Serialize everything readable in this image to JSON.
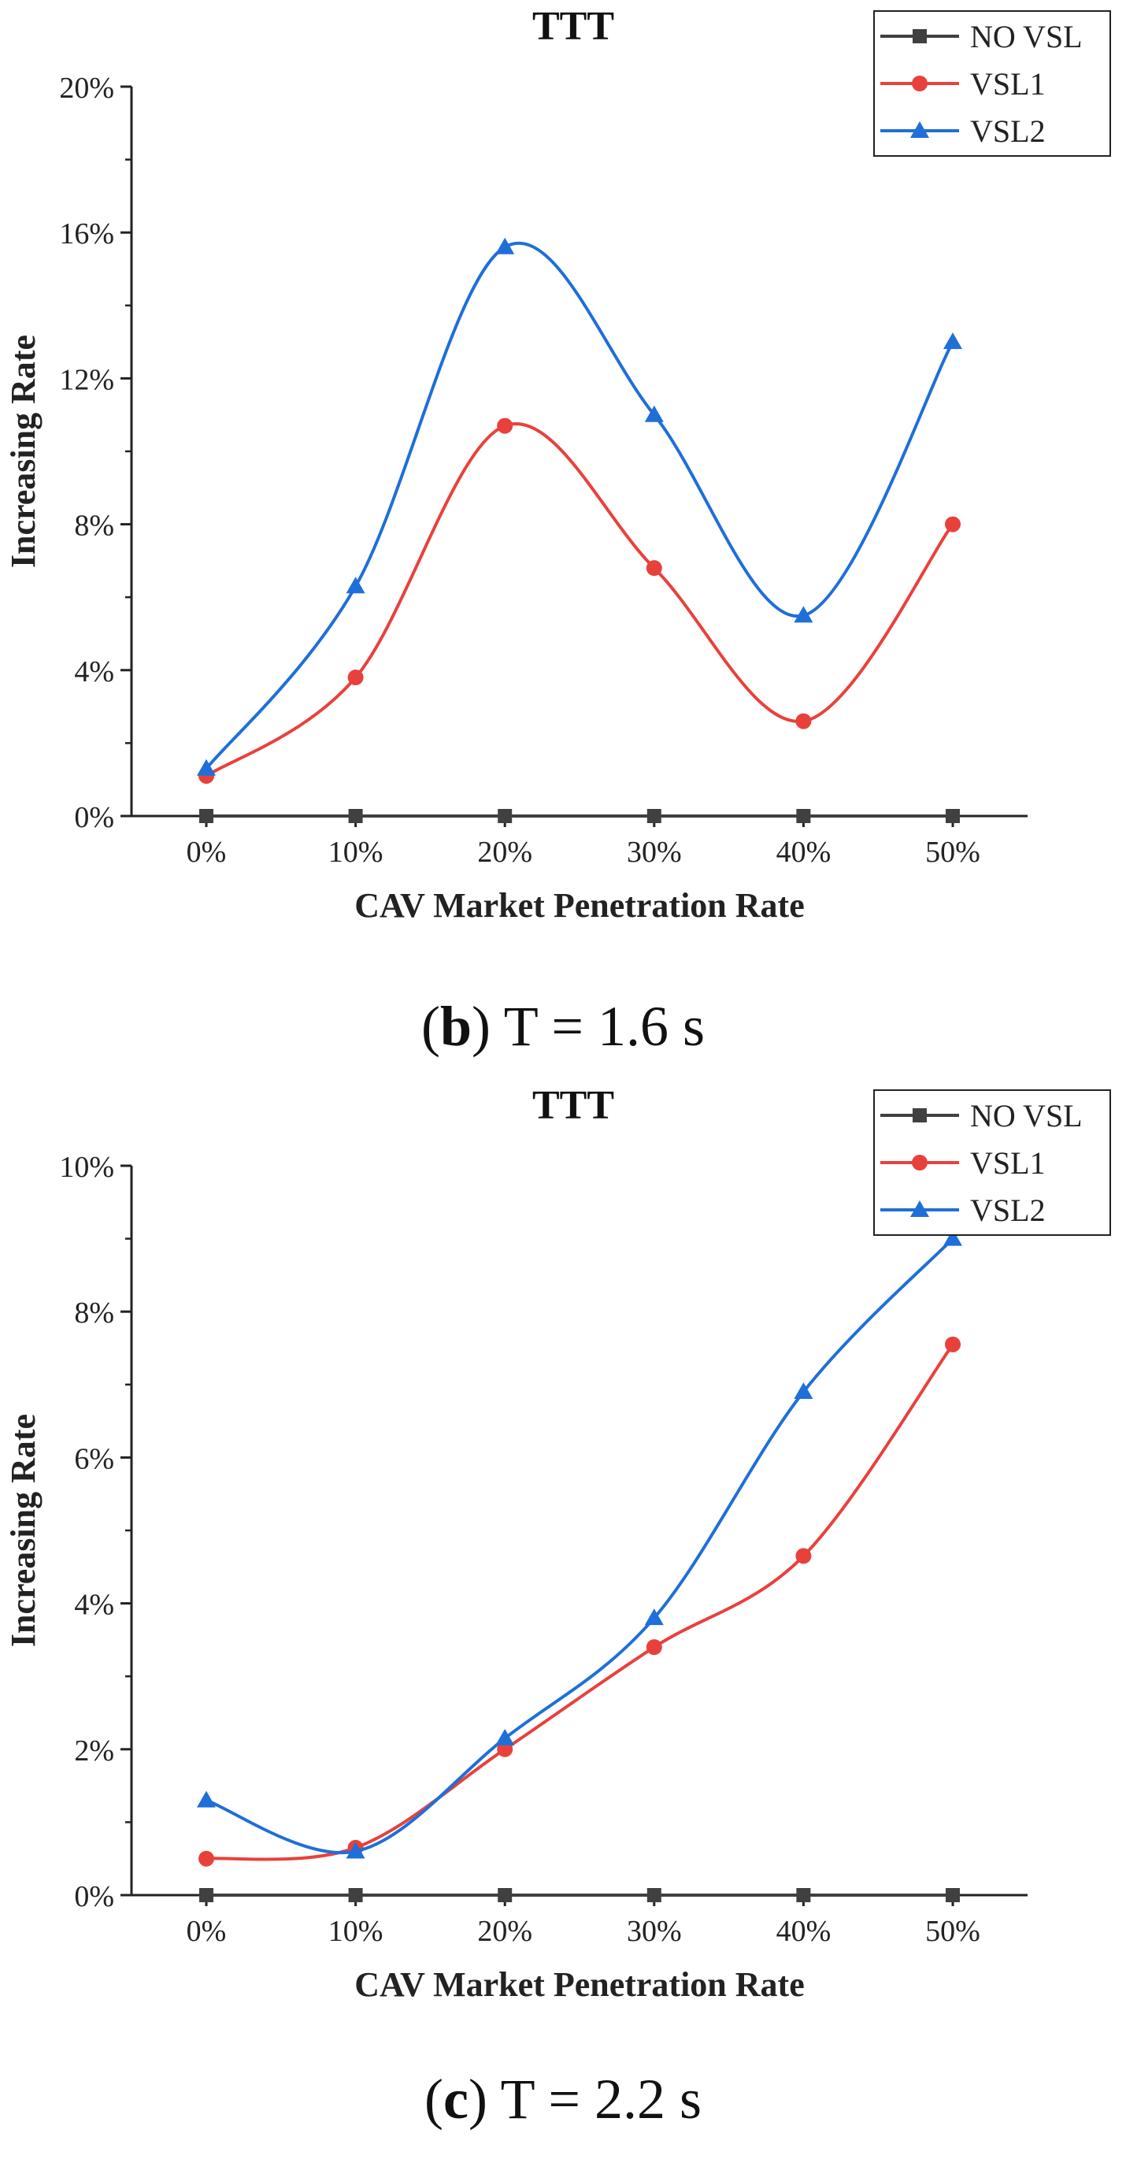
{
  "chart_data": [
    {
      "type": "line",
      "title": "TTT",
      "xlabel": "CAV Market Penetration Rate",
      "ylabel": "Increasing Rate",
      "categories": [
        "0%",
        "10%",
        "20%",
        "30%",
        "40%",
        "50%"
      ],
      "ylim": [
        0,
        20
      ],
      "yticks": [
        "0%",
        "4%",
        "8%",
        "12%",
        "16%",
        "20%"
      ],
      "ytick_values": [
        0,
        4,
        8,
        12,
        16,
        20
      ],
      "grid": false,
      "legend_position": "top-right",
      "series": [
        {
          "name": "NO VSL",
          "marker": "square",
          "color": "#404040",
          "values": [
            0,
            0,
            0,
            0,
            0,
            0
          ]
        },
        {
          "name": "VSL1",
          "marker": "circle",
          "color": "#e8413c",
          "values": [
            1.1,
            3.8,
            10.7,
            6.8,
            2.6,
            8.0
          ]
        },
        {
          "name": "VSL2",
          "marker": "triangle",
          "color": "#1f6fd8",
          "values": [
            1.3,
            6.3,
            15.6,
            11.0,
            5.5,
            13.0
          ]
        }
      ],
      "caption_letter": "b",
      "caption_text": " T = 1.6 s"
    },
    {
      "type": "line",
      "title": "TTT",
      "xlabel": "CAV Market Penetration Rate",
      "ylabel": "Increasing Rate",
      "categories": [
        "0%",
        "10%",
        "20%",
        "30%",
        "40%",
        "50%"
      ],
      "ylim": [
        0,
        10
      ],
      "yticks": [
        "0%",
        "2%",
        "4%",
        "6%",
        "8%",
        "10%"
      ],
      "ytick_values": [
        0,
        2,
        4,
        6,
        8,
        10
      ],
      "grid": false,
      "legend_position": "top-right",
      "series": [
        {
          "name": "NO VSL",
          "marker": "square",
          "color": "#404040",
          "values": [
            0,
            0,
            0,
            0,
            0,
            0
          ]
        },
        {
          "name": "VSL1",
          "marker": "circle",
          "color": "#e8413c",
          "values": [
            0.5,
            0.65,
            2.0,
            3.4,
            4.65,
            7.55
          ]
        },
        {
          "name": "VSL2",
          "marker": "triangle",
          "color": "#1f6fd8",
          "values": [
            1.3,
            0.6,
            2.15,
            3.8,
            6.9,
            9.0
          ]
        }
      ],
      "caption_letter": "c",
      "caption_text": " T = 2.2 s"
    }
  ]
}
